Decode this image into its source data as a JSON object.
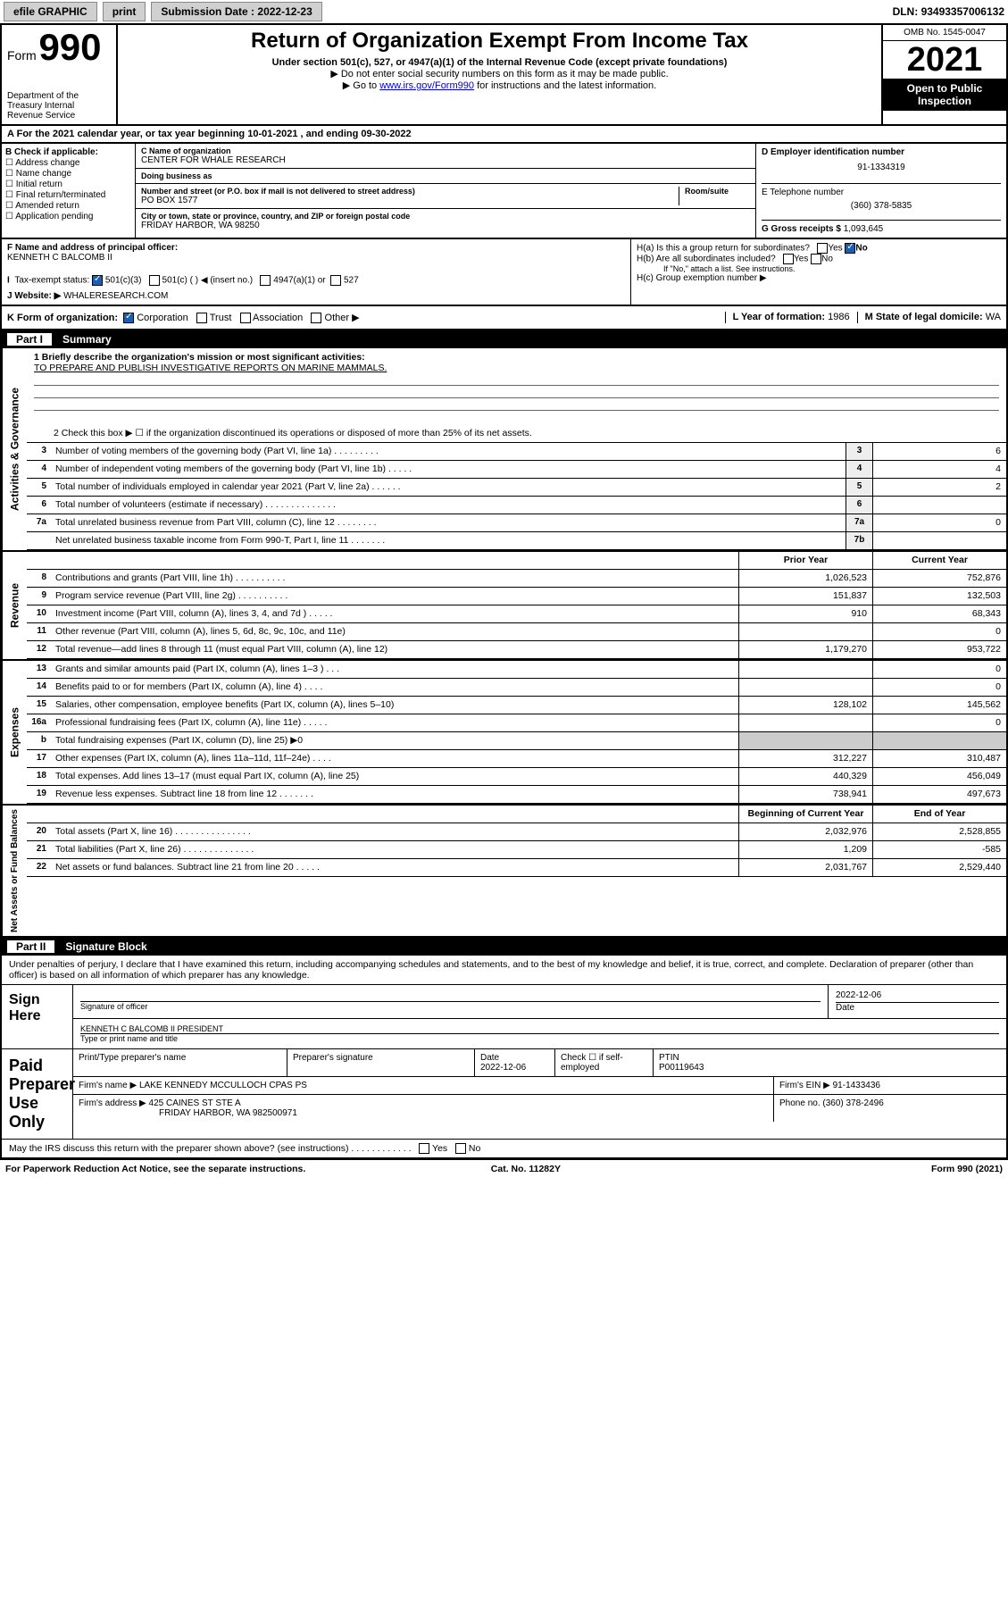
{
  "topbar": {
    "efile": "efile GRAPHIC",
    "print": "print",
    "submission_label": "Submission Date : ",
    "submission_date": "2022-12-23",
    "dln_label": "DLN: ",
    "dln": "93493357006132"
  },
  "header": {
    "form_label": "Form",
    "form_no": "990",
    "dept": "Department of the Treasury\nInternal Revenue Service",
    "title": "Return of Organization Exempt From Income Tax",
    "sub1": "Under section 501(c), 527, or 4947(a)(1) of the Internal Revenue Code (except private foundations)",
    "sub2": "▶ Do not enter social security numbers on this form as it may be made public.",
    "sub3_pre": "▶ Go to ",
    "sub3_link": "www.irs.gov/Form990",
    "sub3_post": " for instructions and the latest information.",
    "omb": "OMB No. 1545-0047",
    "year": "2021",
    "open": "Open to Public Inspection"
  },
  "period": {
    "text_pre": "For the 2021 calendar year, or tax year beginning ",
    "begin": "10-01-2021",
    "mid": " , and ending ",
    "end": "09-30-2022"
  },
  "b": {
    "label": "B Check if applicable:",
    "opts": [
      "Address change",
      "Name change",
      "Initial return",
      "Final return/terminated",
      "Amended return",
      "Application pending"
    ]
  },
  "c": {
    "name_lbl": "C Name of organization",
    "name": "CENTER FOR WHALE RESEARCH",
    "dba_lbl": "Doing business as",
    "dba": "",
    "addr_lbl": "Number and street (or P.O. box if mail is not delivered to street address)",
    "room_lbl": "Room/suite",
    "addr": "PO BOX 1577",
    "city_lbl": "City or town, state or province, country, and ZIP or foreign postal code",
    "city": "FRIDAY HARBOR, WA  98250"
  },
  "d": {
    "ein_lbl": "D Employer identification number",
    "ein": "91-1334319",
    "phone_lbl": "E Telephone number",
    "phone": "(360) 378-5835",
    "gross_lbl": "G Gross receipts $ ",
    "gross": "1,093,645"
  },
  "f": {
    "lbl": "F Name and address of principal officer:",
    "name": "KENNETH C BALCOMB II"
  },
  "h": {
    "a": "H(a)  Is this a group return for subordinates?",
    "a_ans": "No",
    "b": "H(b)  Are all subordinates included?",
    "b_note": "If \"No,\" attach a list. See instructions.",
    "c": "H(c)  Group exemption number ▶"
  },
  "i": {
    "lbl": "Tax-exempt status:",
    "opt1": "501(c)(3)",
    "opt2": "501(c) (  ) ◀ (insert no.)",
    "opt3": "4947(a)(1) or",
    "opt4": "527"
  },
  "j": {
    "lbl": "J   Website: ▶ ",
    "val": "WHALERESEARCH.COM"
  },
  "k": {
    "lbl": "K Form of organization:",
    "opts": [
      "Corporation",
      "Trust",
      "Association",
      "Other ▶"
    ],
    "l_lbl": "L Year of formation: ",
    "l_val": "1986",
    "m_lbl": "M State of legal domicile: ",
    "m_val": "WA"
  },
  "part1": {
    "hdr": "Part I",
    "title": "Summary",
    "vtabs": [
      "Activities & Governance",
      "Revenue",
      "Expenses",
      "Net Assets or Fund Balances"
    ],
    "mission_lbl": "1  Briefly describe the organization's mission or most significant activities:",
    "mission": "TO PREPARE AND PUBLISH INVESTIGATIVE REPORTS ON MARINE MAMMALS.",
    "line2": "2   Check this box ▶ ☐  if the organization discontinued its operations or disposed of more than 25% of its net assets.",
    "col_prior": "Prior Year",
    "col_current": "Current Year",
    "col_bcy": "Beginning of Current Year",
    "col_eoy": "End of Year",
    "gov_lines": [
      {
        "n": "3",
        "t": "Number of voting members of the governing body (Part VI, line 1a)  .  .  .  .  .  .  .  .  .",
        "bn": "3",
        "v": "6"
      },
      {
        "n": "4",
        "t": "Number of independent voting members of the governing body (Part VI, line 1b)  .  .  .  .  .",
        "bn": "4",
        "v": "4"
      },
      {
        "n": "5",
        "t": "Total number of individuals employed in calendar year 2021 (Part V, line 2a)  .  .  .  .  .  .",
        "bn": "5",
        "v": "2"
      },
      {
        "n": "6",
        "t": "Total number of volunteers (estimate if necessary)  .  .  .  .  .  .  .  .  .  .  .  .  .  .",
        "bn": "6",
        "v": ""
      },
      {
        "n": "7a",
        "t": "Total unrelated business revenue from Part VIII, column (C), line 12  .  .  .  .  .  .  .  .",
        "bn": "7a",
        "v": "0"
      },
      {
        "n": "",
        "t": "Net unrelated business taxable income from Form 990-T, Part I, line 11  .  .  .  .  .  .  .",
        "bn": "7b",
        "v": ""
      }
    ],
    "rev_lines": [
      {
        "n": "8",
        "t": "Contributions and grants (Part VIII, line 1h)  .  .  .  .  .  .  .  .  .  .",
        "p": "1,026,523",
        "c": "752,876"
      },
      {
        "n": "9",
        "t": "Program service revenue (Part VIII, line 2g)  .  .  .  .  .  .  .  .  .  .",
        "p": "151,837",
        "c": "132,503"
      },
      {
        "n": "10",
        "t": "Investment income (Part VIII, column (A), lines 3, 4, and 7d )  .  .  .  .  .",
        "p": "910",
        "c": "68,343"
      },
      {
        "n": "11",
        "t": "Other revenue (Part VIII, column (A), lines 5, 6d, 8c, 9c, 10c, and 11e)",
        "p": "",
        "c": "0"
      },
      {
        "n": "12",
        "t": "Total revenue—add lines 8 through 11 (must equal Part VIII, column (A), line 12)",
        "p": "1,179,270",
        "c": "953,722"
      }
    ],
    "exp_lines": [
      {
        "n": "13",
        "t": "Grants and similar amounts paid (Part IX, column (A), lines 1–3 )  .  .  .",
        "p": "",
        "c": "0"
      },
      {
        "n": "14",
        "t": "Benefits paid to or for members (Part IX, column (A), line 4)  .  .  .  .",
        "p": "",
        "c": "0"
      },
      {
        "n": "15",
        "t": "Salaries, other compensation, employee benefits (Part IX, column (A), lines 5–10)",
        "p": "128,102",
        "c": "145,562"
      },
      {
        "n": "16a",
        "t": "Professional fundraising fees (Part IX, column (A), line 11e)  .  .  .  .  .",
        "p": "",
        "c": "0"
      },
      {
        "n": "b",
        "t": "Total fundraising expenses (Part IX, column (D), line 25) ▶0",
        "p": "—",
        "c": "—"
      },
      {
        "n": "17",
        "t": "Other expenses (Part IX, column (A), lines 11a–11d, 11f–24e)  .  .  .  .",
        "p": "312,227",
        "c": "310,487"
      },
      {
        "n": "18",
        "t": "Total expenses. Add lines 13–17 (must equal Part IX, column (A), line 25)",
        "p": "440,329",
        "c": "456,049"
      },
      {
        "n": "19",
        "t": "Revenue less expenses. Subtract line 18 from line 12  .  .  .  .  .  .  .",
        "p": "738,941",
        "c": "497,673"
      }
    ],
    "na_lines": [
      {
        "n": "20",
        "t": "Total assets (Part X, line 16)  .  .  .  .  .  .  .  .  .  .  .  .  .  .  .",
        "p": "2,032,976",
        "c": "2,528,855"
      },
      {
        "n": "21",
        "t": "Total liabilities (Part X, line 26)  .  .  .  .  .  .  .  .  .  .  .  .  .  .",
        "p": "1,209",
        "c": "-585"
      },
      {
        "n": "22",
        "t": "Net assets or fund balances. Subtract line 21 from line 20  .  .  .  .  .",
        "p": "2,031,767",
        "c": "2,529,440"
      }
    ]
  },
  "part2": {
    "hdr": "Part II",
    "title": "Signature Block",
    "decl": "Under penalties of perjury, I declare that I have examined this return, including accompanying schedules and statements, and to the best of my knowledge and belief, it is true, correct, and complete. Declaration of preparer (other than officer) is based on all information of which preparer has any knowledge.",
    "sign_lbl": "Sign Here",
    "sig_of": "Signature of officer",
    "sig_date": "2022-12-06",
    "date_lbl": "Date",
    "officer": "KENNETH C BALCOMB II  PRESIDENT",
    "officer_lbl": "Type or print name and title",
    "paid_lbl": "Paid Preparer Use Only",
    "prep_name_lbl": "Print/Type preparer's name",
    "prep_sig_lbl": "Preparer's signature",
    "prep_date": "2022-12-06",
    "check_lbl": "Check ☐ if self-employed",
    "ptin_lbl": "PTIN",
    "ptin": "P00119643",
    "firm_name_lbl": "Firm's name   ▶ ",
    "firm_name": "LAKE KENNEDY MCCULLOCH CPAS PS",
    "firm_ein_lbl": "Firm's EIN ▶ ",
    "firm_ein": "91-1433436",
    "firm_addr_lbl": "Firm's address ▶ ",
    "firm_addr1": "425 CAINES ST STE A",
    "firm_addr2": "FRIDAY HARBOR, WA  982500971",
    "firm_phone_lbl": "Phone no. ",
    "firm_phone": "(360) 378-2496",
    "discuss": "May the IRS discuss this return with the preparer shown above? (see instructions)  .  .  .  .  .  .  .  .  .  .  .  .",
    "discuss_yes": "Yes",
    "discuss_no": "No"
  },
  "footer": {
    "left": "For Paperwork Reduction Act Notice, see the separate instructions.",
    "mid": "Cat. No. 11282Y",
    "right": "Form 990 (2021)"
  }
}
